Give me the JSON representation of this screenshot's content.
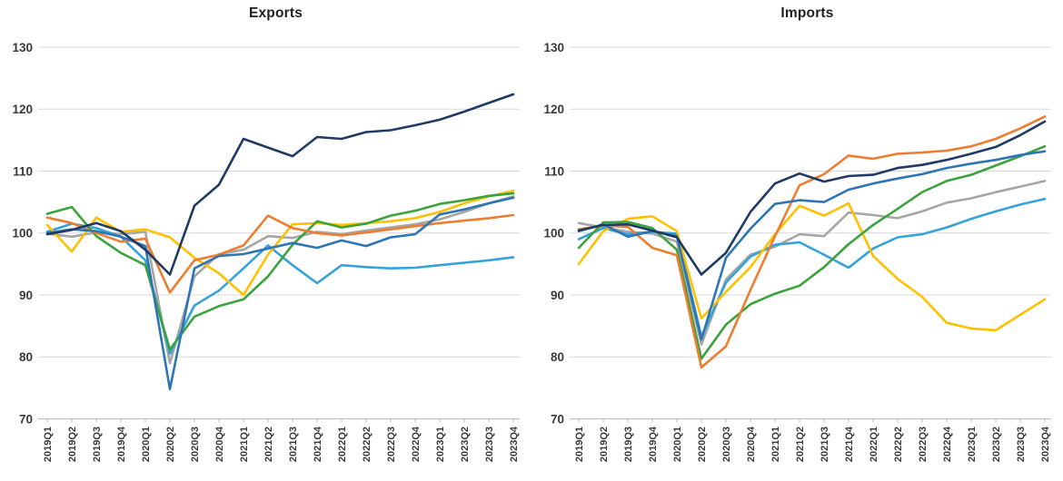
{
  "page": {
    "background": "#FFFFFF"
  },
  "chart_data": [
    {
      "type": "line",
      "title": "Exports",
      "xlabel": "",
      "ylabel": "",
      "ylim": [
        70,
        130
      ],
      "yticks": [
        130,
        120,
        110,
        100,
        90,
        80,
        70
      ],
      "grid": true,
      "legend": "none",
      "grid_color": "#D9D9D9",
      "axis_color": "#BFBFBF",
      "tick_label_color": "#3A3A3A",
      "x_categories": [
        "2019Q1",
        "2019Q2",
        "2019Q3",
        "2019Q4",
        "2020Q1",
        "2020Q2",
        "2020Q3",
        "2020Q4",
        "2021Q1",
        "2021Q2",
        "2021Q3",
        "2021Q4",
        "2022Q1",
        "2022Q2",
        "2022Q3",
        "2022Q4",
        "2023Q1",
        "2023Q2",
        "2023Q3",
        "2023Q4"
      ],
      "series": [
        {
          "name": "gray",
          "color": "#A6A6A6",
          "values": [
            99.9,
            99.4,
            100.1,
            99.8,
            100.2,
            79.0,
            93.0,
            96.6,
            97.3,
            99.5,
            99.2,
            100.2,
            99.8,
            100.4,
            100.9,
            101.4,
            102.2,
            103.4,
            104.8,
            105.9
          ]
        },
        {
          "name": "light-blue",
          "color": "#35A2DC",
          "values": [
            100.2,
            101.5,
            100.8,
            99.4,
            95.6,
            80.5,
            88.3,
            90.7,
            94.3,
            98.0,
            94.8,
            91.9,
            94.8,
            94.5,
            94.3,
            94.4,
            94.8,
            95.2,
            95.6,
            96.1
          ]
        },
        {
          "name": "gold",
          "color": "#FFC000",
          "values": [
            101.3,
            97.0,
            102.5,
            100.2,
            100.6,
            99.3,
            96.0,
            93.5,
            90.0,
            96.5,
            101.4,
            101.6,
            101.3,
            101.6,
            101.9,
            102.4,
            103.4,
            104.8,
            105.9,
            106.8
          ]
        },
        {
          "name": "green",
          "color": "#3CA33C",
          "values": [
            103.1,
            104.2,
            99.5,
            96.8,
            94.8,
            81.2,
            86.5,
            88.2,
            89.3,
            93.0,
            98.1,
            101.9,
            100.9,
            101.5,
            102.8,
            103.6,
            104.7,
            105.3,
            106.0,
            106.4
          ]
        },
        {
          "name": "orange",
          "color": "#ED7D31",
          "values": [
            102.5,
            101.6,
            100.0,
            98.6,
            99.1,
            90.4,
            95.6,
            96.5,
            98.0,
            102.8,
            100.8,
            100.0,
            99.6,
            100.1,
            100.6,
            101.1,
            101.6,
            102.0,
            102.4,
            102.9
          ]
        },
        {
          "name": "blue",
          "color": "#2E75B6",
          "values": [
            100.0,
            100.6,
            100.3,
            99.4,
            97.9,
            74.8,
            94.3,
            96.3,
            96.6,
            97.5,
            98.4,
            97.6,
            98.8,
            97.9,
            99.3,
            99.8,
            103.0,
            103.8,
            104.8,
            105.7
          ]
        },
        {
          "name": "dark-navy",
          "color": "#1F3A64",
          "values": [
            99.8,
            100.5,
            101.6,
            100.3,
            97.3,
            93.3,
            104.4,
            107.8,
            115.2,
            113.8,
            112.4,
            115.5,
            115.2,
            116.3,
            116.6,
            117.4,
            118.3,
            119.6,
            121.0,
            122.4
          ]
        }
      ]
    },
    {
      "type": "line",
      "title": "Imports",
      "xlabel": "",
      "ylabel": "",
      "ylim": [
        70,
        130
      ],
      "yticks": [
        130,
        120,
        110,
        100,
        90,
        80,
        70
      ],
      "grid": true,
      "legend": "none",
      "grid_color": "#D9D9D9",
      "axis_color": "#BFBFBF",
      "tick_label_color": "#3A3A3A",
      "x_categories": [
        "2019Q1",
        "2019Q2",
        "2019Q3",
        "2019Q4",
        "2020Q1",
        "2020Q2",
        "2020Q3",
        "2020Q4",
        "2021Q1",
        "2021Q2",
        "2021Q3",
        "2021Q4",
        "2022Q1",
        "2022Q2",
        "2022Q3",
        "2022Q4",
        "2023Q1",
        "2023Q2",
        "2023Q3",
        "2023Q4"
      ],
      "series": [
        {
          "name": "gray",
          "color": "#A6A6A6",
          "values": [
            101.6,
            100.9,
            100.2,
            99.9,
            98.6,
            82.0,
            92.5,
            96.5,
            97.8,
            99.8,
            99.5,
            103.3,
            102.9,
            102.4,
            103.5,
            104.9,
            105.6,
            106.6,
            107.5,
            108.4
          ]
        },
        {
          "name": "light-blue",
          "color": "#35A2DC",
          "values": [
            99.0,
            100.8,
            99.8,
            100.2,
            99.9,
            83.3,
            92.0,
            96.2,
            98.1,
            98.5,
            96.5,
            94.4,
            97.5,
            99.3,
            99.8,
            100.9,
            102.3,
            103.5,
            104.6,
            105.5
          ]
        },
        {
          "name": "gold",
          "color": "#FFC000",
          "values": [
            95.0,
            100.3,
            102.3,
            102.7,
            100.3,
            86.2,
            90.5,
            94.5,
            99.8,
            104.4,
            102.8,
            104.8,
            96.3,
            92.6,
            89.7,
            85.5,
            84.6,
            84.3,
            86.8,
            89.3
          ]
        },
        {
          "name": "green",
          "color": "#3CA33C",
          "values": [
            97.6,
            101.7,
            101.8,
            100.8,
            97.3,
            79.7,
            85.2,
            88.5,
            90.2,
            91.5,
            94.5,
            98.2,
            101.3,
            103.9,
            106.6,
            108.4,
            109.4,
            110.9,
            112.4,
            114.0
          ]
        },
        {
          "name": "orange",
          "color": "#ED7D31",
          "values": [
            100.6,
            101.2,
            101.0,
            97.6,
            96.4,
            78.3,
            81.7,
            90.8,
            99.5,
            107.7,
            109.5,
            112.5,
            112.0,
            112.8,
            113.0,
            113.3,
            114.0,
            115.2,
            116.9,
            118.8
          ]
        },
        {
          "name": "blue",
          "color": "#2E75B6",
          "values": [
            100.3,
            101.4,
            99.4,
            100.3,
            99.5,
            82.8,
            96.0,
            100.7,
            104.7,
            105.3,
            105.0,
            107.0,
            108.0,
            108.8,
            109.5,
            110.5,
            111.2,
            111.8,
            112.6,
            113.2
          ]
        },
        {
          "name": "dark-navy",
          "color": "#1F3A64",
          "values": [
            100.4,
            101.3,
            101.4,
            100.4,
            99.3,
            93.3,
            96.8,
            103.4,
            108.0,
            109.6,
            108.3,
            109.2,
            109.4,
            110.5,
            111.0,
            111.8,
            112.8,
            113.9,
            115.8,
            118.0
          ]
        }
      ]
    }
  ]
}
